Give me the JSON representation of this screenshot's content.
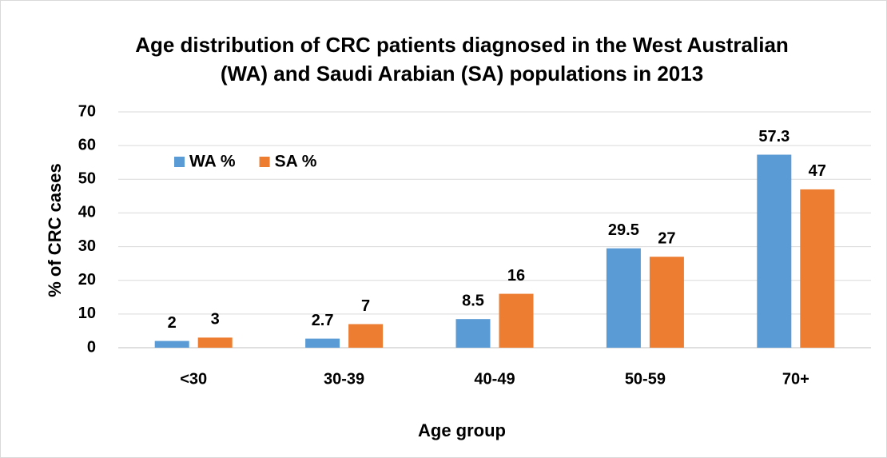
{
  "chart_data": {
    "type": "bar",
    "title": [
      "Age distribution of CRC patients diagnosed in the West Australian",
      "(WA) and Saudi Arabian (SA) populations in 2013"
    ],
    "x_label": "Age group",
    "y_label": "% of CRC cases",
    "categories": [
      "<30",
      "30-39",
      "40-49",
      "50-59",
      "70+"
    ],
    "series": [
      {
        "name": "WA %",
        "color": "#5b9bd5",
        "values": [
          2,
          2.7,
          8.5,
          29.5,
          57.3
        ]
      },
      {
        "name": "SA %",
        "color": "#ed7d31",
        "values": [
          3,
          7,
          16,
          27,
          47
        ]
      }
    ],
    "ylim": [
      0,
      70
    ],
    "yticks": [
      0,
      10,
      20,
      30,
      40,
      50,
      60,
      70
    ],
    "grid": true,
    "legend": "top-left"
  }
}
